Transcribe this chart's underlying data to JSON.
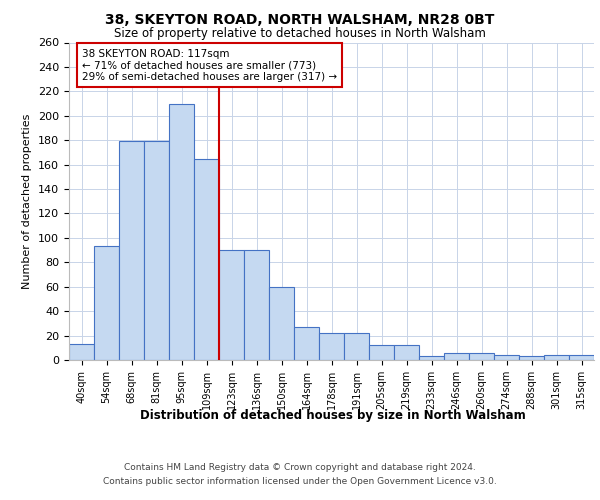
{
  "title1": "38, SKEYTON ROAD, NORTH WALSHAM, NR28 0BT",
  "title2": "Size of property relative to detached houses in North Walsham",
  "xlabel": "Distribution of detached houses by size in North Walsham",
  "ylabel": "Number of detached properties",
  "categories": [
    "40sqm",
    "54sqm",
    "68sqm",
    "81sqm",
    "95sqm",
    "109sqm",
    "123sqm",
    "136sqm",
    "150sqm",
    "164sqm",
    "178sqm",
    "191sqm",
    "205sqm",
    "219sqm",
    "233sqm",
    "246sqm",
    "260sqm",
    "274sqm",
    "288sqm",
    "301sqm",
    "315sqm"
  ],
  "values": [
    13,
    93,
    179,
    179,
    210,
    165,
    90,
    90,
    60,
    27,
    22,
    22,
    12,
    12,
    3,
    6,
    6,
    4,
    3,
    4,
    4
  ],
  "bar_color": "#c5d9f1",
  "bar_edge_color": "#4472c4",
  "annotation_title": "38 SKEYTON ROAD: 117sqm",
  "annotation_line1": "← 71% of detached houses are smaller (773)",
  "annotation_line2": "29% of semi-detached houses are larger (317) →",
  "annotation_box_color": "#ffffff",
  "annotation_box_edge_color": "#cc0000",
  "footer1": "Contains HM Land Registry data © Crown copyright and database right 2024.",
  "footer2": "Contains public sector information licensed under the Open Government Licence v3.0.",
  "ylim": [
    0,
    260
  ],
  "yticks": [
    0,
    20,
    40,
    60,
    80,
    100,
    120,
    140,
    160,
    180,
    200,
    220,
    240,
    260
  ],
  "red_line_color": "#cc0000",
  "background_color": "#ffffff",
  "grid_color": "#c8d4e8"
}
